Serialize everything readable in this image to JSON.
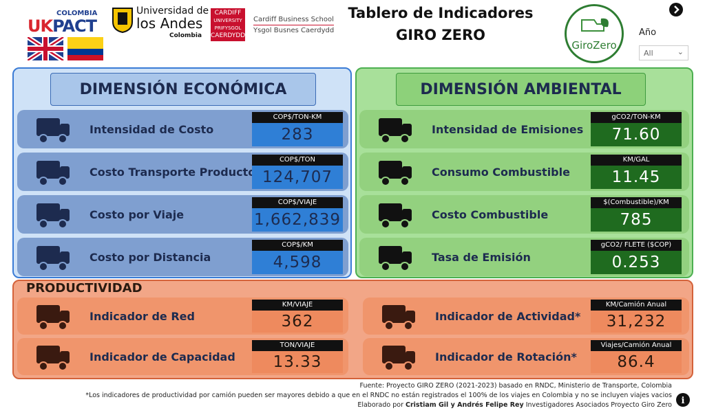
{
  "header": {
    "logos": {
      "ukpact_country": "COLOMBIA",
      "uk": "UK",
      "pact": "PACT",
      "uniandes_line1": "Universidad de",
      "uniandes_line2": "los Andes",
      "uniandes_country": "Colombia",
      "cardiff": [
        "CARDIFF",
        "UNIVERSITY",
        "PRIFYSGOL",
        "CAERDYDD"
      ],
      "cbs_name": "Cardiff Business School",
      "cbs_welsh": "Ysgol Busnes Caerdydd",
      "girozero": "GiroZero"
    },
    "title_line1": "Tablero de Indicadores",
    "title_line2": "GIRO ZERO"
  },
  "filter": {
    "label": "Año",
    "value": "All"
  },
  "sections": [
    {
      "title": "DIMENSIÓN ECONÓMICA",
      "cards": [
        {
          "label": "Intensidad de Costo",
          "unit": "COP$/TON-KM",
          "value": "283"
        },
        {
          "label": "Costo Transporte Producto",
          "unit": "COP$/TON",
          "value": "124,707"
        },
        {
          "label": "Costo  por Viaje",
          "unit": "COP$/VIAJE",
          "value": "1,662,839"
        },
        {
          "label": "Costo por Distancia",
          "unit": "COP$/KM",
          "value": "4,598"
        }
      ]
    },
    {
      "title": "DIMENSIÓN AMBIENTAL",
      "cards": [
        {
          "label": "Intensidad de Emisiones",
          "unit": "gCO2/TON-KM",
          "value": "71.60"
        },
        {
          "label": "Consumo Combustible",
          "unit": "KM/GAL",
          "value": "11.45"
        },
        {
          "label": "Costo Combustible",
          "unit": "$(Combustible)/KM",
          "value": "785"
        },
        {
          "label": "Tasa de Emisión",
          "unit": "gCO2/ FLETE ($COP)",
          "value": "0.253"
        }
      ]
    },
    {
      "title": "PRODUCTIVIDAD",
      "cards": [
        {
          "label": "Indicador de Red",
          "unit": "KM/VIAJE",
          "value": "362"
        },
        {
          "label": "Indicador de Actividad*",
          "unit": "KM/Camión Anual",
          "value": "31,232"
        },
        {
          "label": "Indicador de Capacidad",
          "unit": "TON/VIAJE",
          "value": "13.33"
        },
        {
          "label": "Indicador de Rotación*",
          "unit": "Viajes/Camión Anual",
          "value": "86.4"
        }
      ]
    }
  ],
  "footer": {
    "source": "Fuente: Proyecto GIRO ZERO (2021-2023) basado en RNDC, Ministerio de Transporte, Colombia",
    "note": "*Los indicadores de productividad por camión pueden ser mayores debido a que en el RNDC no están registrados el 100% de los viajes en Colombia y no se incluyen viajes vacios",
    "credit": {
      "prefix": "Elaborado por",
      "names": "Cristiam Gil y Andrés Felipe Rey",
      "suffix": "Investigadores Asociados Proyecto Giro Zero"
    }
  }
}
